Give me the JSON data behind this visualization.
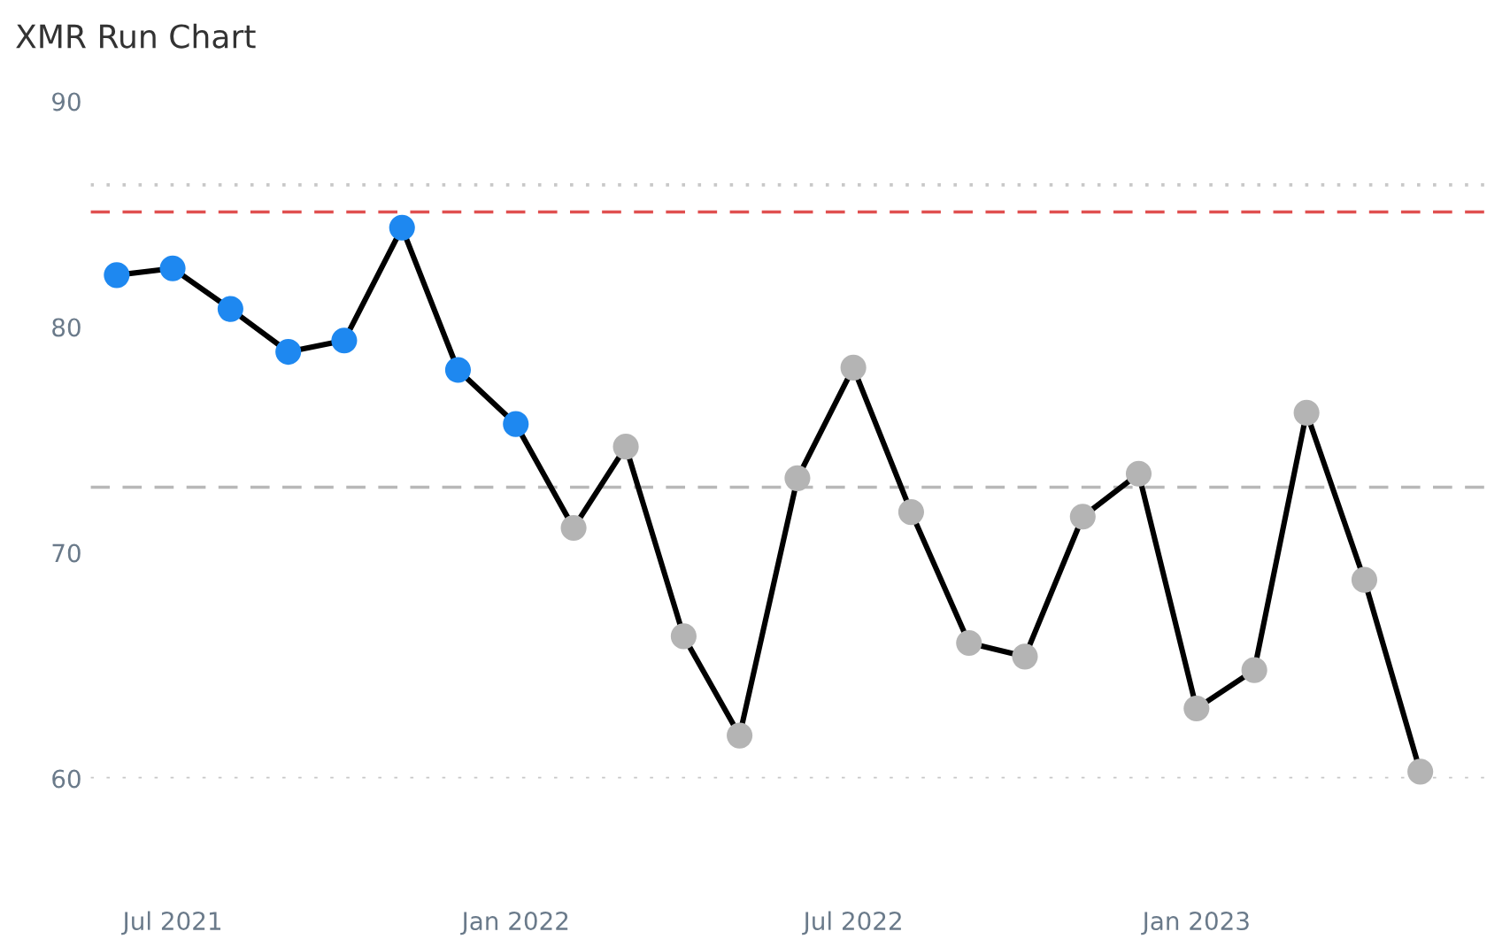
{
  "chart_data": {
    "type": "line",
    "title": "XMR Run Chart",
    "x": [
      "2021-06",
      "2021-07",
      "2021-08",
      "2021-09",
      "2021-10",
      "2021-11",
      "2021-12",
      "2022-01",
      "2022-02",
      "2022-03",
      "2022-04",
      "2022-05",
      "2022-06",
      "2022-07",
      "2022-08",
      "2022-09",
      "2022-10",
      "2022-11",
      "2022-12",
      "2023-01",
      "2023-02",
      "2023-03",
      "2023-04",
      "2023-05"
    ],
    "series": [
      {
        "color": "#000000",
        "colors": [
          "#1e88f0",
          "#1e88f0",
          "#1e88f0",
          "#1e88f0",
          "#1e88f0",
          "#1e88f0",
          "#1e88f0",
          "#1e88f0",
          "#b4b4b4",
          "#b4b4b4",
          "#b4b4b4",
          "#b4b4b4",
          "#b4b4b4",
          "#b4b4b4",
          "#b4b4b4",
          "#b4b4b4",
          "#b4b4b4",
          "#b4b4b4",
          "#b4b4b4",
          "#b4b4b4",
          "#b4b4b4",
          "#b4b4b4",
          "#b4b4b4",
          "#b4b4b4"
        ],
        "values": [
          82.3,
          82.6,
          80.8,
          78.9,
          79.4,
          84.4,
          78.1,
          75.7,
          71.1,
          74.7,
          66.3,
          61.9,
          73.3,
          78.2,
          71.8,
          66.0,
          65.4,
          71.6,
          73.5,
          63.1,
          64.8,
          76.2,
          68.8,
          60.3
        ]
      }
    ],
    "ylim": [
      60,
      90
    ],
    "yticks": [
      60,
      70,
      80,
      90
    ],
    "xlim": [
      "2021-05-18",
      "2023-06-10"
    ],
    "xticks": [
      {
        "value": "2021-07",
        "label": "Jul 2021"
      },
      {
        "value": "2022-01",
        "label": "Jan 2022"
      },
      {
        "value": "2022-07",
        "label": "Jul 2022"
      },
      {
        "value": "2023-01",
        "label": "Jan 2023"
      }
    ],
    "ref_lines": [
      {
        "axis": "y",
        "value": 86.3,
        "color": "#c8c8c8",
        "line_style": "dotted"
      },
      {
        "axis": "y",
        "value": 85.1,
        "color": "#e05050",
        "line_style": "dashed"
      },
      {
        "axis": "y",
        "value": 72.9,
        "color": "#b8b8b8",
        "line_style": "dashed"
      },
      {
        "axis": "y",
        "value": 60,
        "color": "#c8c8c8",
        "line_style": "dotted"
      }
    ],
    "grid": false,
    "legend": false,
    "marker": "circle",
    "line_style": "solid"
  }
}
